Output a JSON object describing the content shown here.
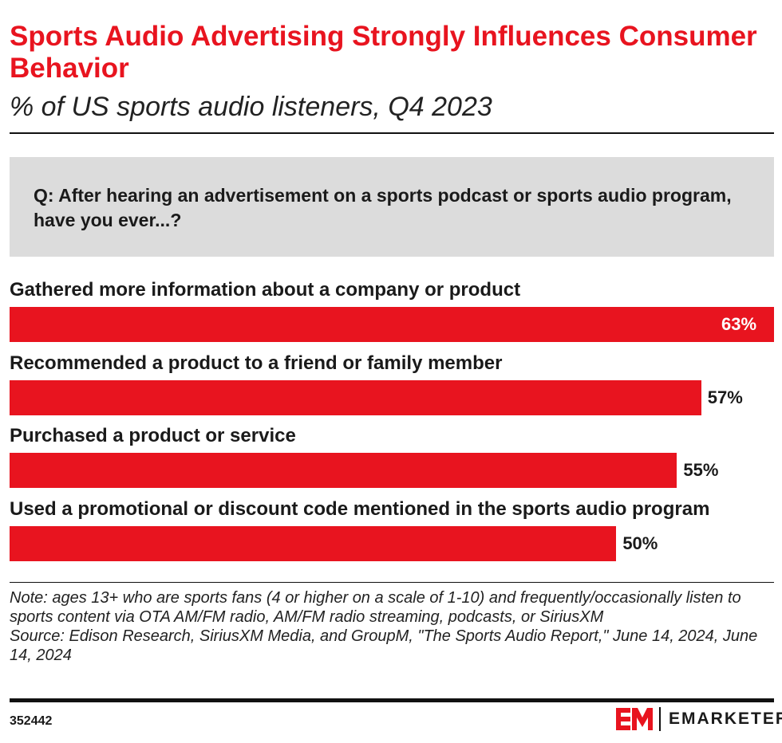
{
  "chart_data": {
    "type": "bar",
    "orientation": "horizontal",
    "title": "Sports Audio Advertising Strongly Influences Consumer Behavior",
    "subtitle": "% of US sports audio listeners, Q4 2023",
    "question": "Q: After hearing an advertisement on a sports podcast or sports audio program, have you ever...?",
    "categories": [
      "Gathered more information about a company or product",
      "Recommended a product to a friend or family member",
      "Purchased a product or service",
      "Used a promotional or discount code mentioned in the sports audio program"
    ],
    "values": [
      63,
      57,
      55,
      50
    ],
    "data_labels": [
      "63%",
      "57%",
      "55%",
      "50%"
    ],
    "bar_color": "#e8141f",
    "grid": false
  },
  "note": "Note: ages 13+ who are sports fans (4 or higher on a scale of 1-10) and frequently/occasionally listen to sports content via OTA AM/FM radio, AM/FM radio streaming, podcasts, or SiriusXM",
  "source": "Source: Edison Research, SiriusXM Media, and GroupM, \"The Sports Audio Report,\" June 14, 2024, June 14, 2024",
  "chart_id": "352442",
  "brand": "EMARKETER",
  "logo_mark": "EM"
}
